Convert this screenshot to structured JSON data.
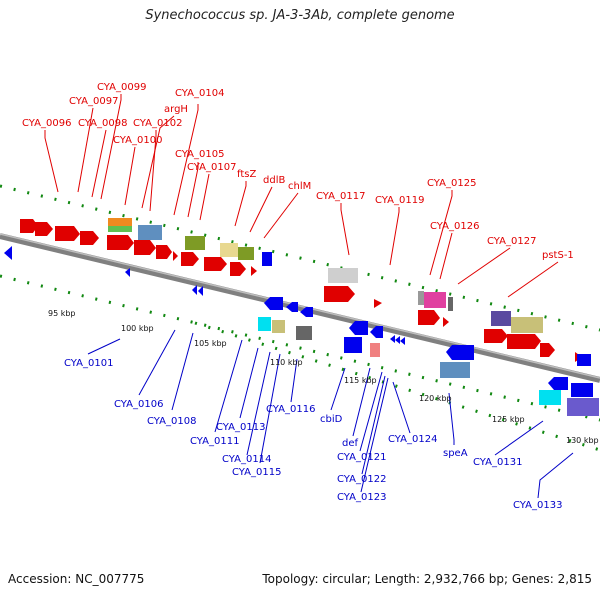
{
  "title": "Synechococcus sp. JA-3-3Ab, complete genome",
  "accession": "Accession: NC_007775",
  "topology": "Topology: circular; Length: 2,932,766 bp; Genes: 2,815",
  "colors": {
    "forward_label": "#e00000",
    "reverse_label": "#0000c8",
    "backbone": "#808080",
    "tick": "#118811"
  },
  "scale_labels": [
    "95 kbp",
    "100 kbp",
    "105 kbp",
    "110 kbp",
    "115 kbp",
    "120 kbp",
    "125 kbp",
    "130 kbp"
  ],
  "forward_genes": [
    "CYA_0096",
    "CYA_0097",
    "CYA_0098",
    "CYA_0099",
    "CYA_0100",
    "argH",
    "CYA_0102",
    "CYA_0104",
    "CYA_0105",
    "CYA_0107",
    "ftsZ",
    "ddlB",
    "chlM",
    "CYA_0117",
    "CYA_0119",
    "CYA_0125",
    "CYA_0126",
    "CYA_0127",
    "pstS-1"
  ],
  "reverse_genes": [
    "CYA_0101",
    "CYA_0106",
    "CYA_0108",
    "CYA_0111",
    "CYA_0113",
    "CYA_0114",
    "CYA_0115",
    "CYA_0116",
    "cbiD",
    "def",
    "CYA_0121",
    "CYA_0122",
    "CYA_0123",
    "CYA_0124",
    "speA",
    "CYA_0131",
    "CYA_0133"
  ]
}
